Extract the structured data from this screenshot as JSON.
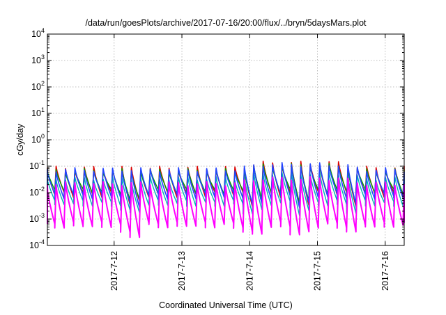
{
  "chart_data": {
    "type": "line",
    "title": "/data/run/goesPlots/archive/2017-07-16/20:00/flux/../bryn/5daysMars.plot",
    "xlabel": "Coordinated Universal Time (UTC)",
    "ylabel": "cGy/day",
    "yscale": "log",
    "ylim": [
      0.0001,
      10000
    ],
    "xlim": [
      0,
      5.265
    ],
    "grid": true,
    "legend": "none",
    "y_ticks": [
      {
        "base": "10",
        "exp": "-4",
        "value": 0.0001
      },
      {
        "base": "10",
        "exp": "-3",
        "value": 0.001
      },
      {
        "base": "10",
        "exp": "-2",
        "value": 0.01
      },
      {
        "base": "10",
        "exp": "-1",
        "value": 0.1
      },
      {
        "base": "10",
        "exp": "0",
        "value": 1
      },
      {
        "base": "10",
        "exp": "1",
        "value": 10
      },
      {
        "base": "10",
        "exp": "2",
        "value": 100
      },
      {
        "base": "10",
        "exp": "3",
        "value": 1000
      },
      {
        "base": "10",
        "exp": "4",
        "value": 10000
      }
    ],
    "x_ticks": [
      {
        "label": "2017-7-12",
        "value": 0.985
      },
      {
        "label": "2017-7-13",
        "value": 1.985
      },
      {
        "label": "2017-7-14",
        "value": 2.985
      },
      {
        "label": "2017-7-15",
        "value": 3.985
      },
      {
        "label": "2017-7-16",
        "value": 4.985
      }
    ],
    "oscillation_period_days": 0.1389,
    "series": [
      {
        "color": "#dd0000",
        "peak_base": 0.085,
        "floor_base": 0.0085,
        "width": 1.6
      },
      {
        "color": "#00a000",
        "peak_base": 0.07,
        "floor_base": 0.011,
        "width": 1.4
      },
      {
        "color": "#00b4b4",
        "peak_base": 0.035,
        "floor_base": 0.004,
        "width": 1.4
      },
      {
        "color": "#2244ff",
        "peak_base": 0.075,
        "floor_base": 0.0075,
        "width": 1.6
      },
      {
        "color": "#ff00ff",
        "peak_base": 0.022,
        "floor_base": 0.0006,
        "width": 2.0
      }
    ]
  }
}
